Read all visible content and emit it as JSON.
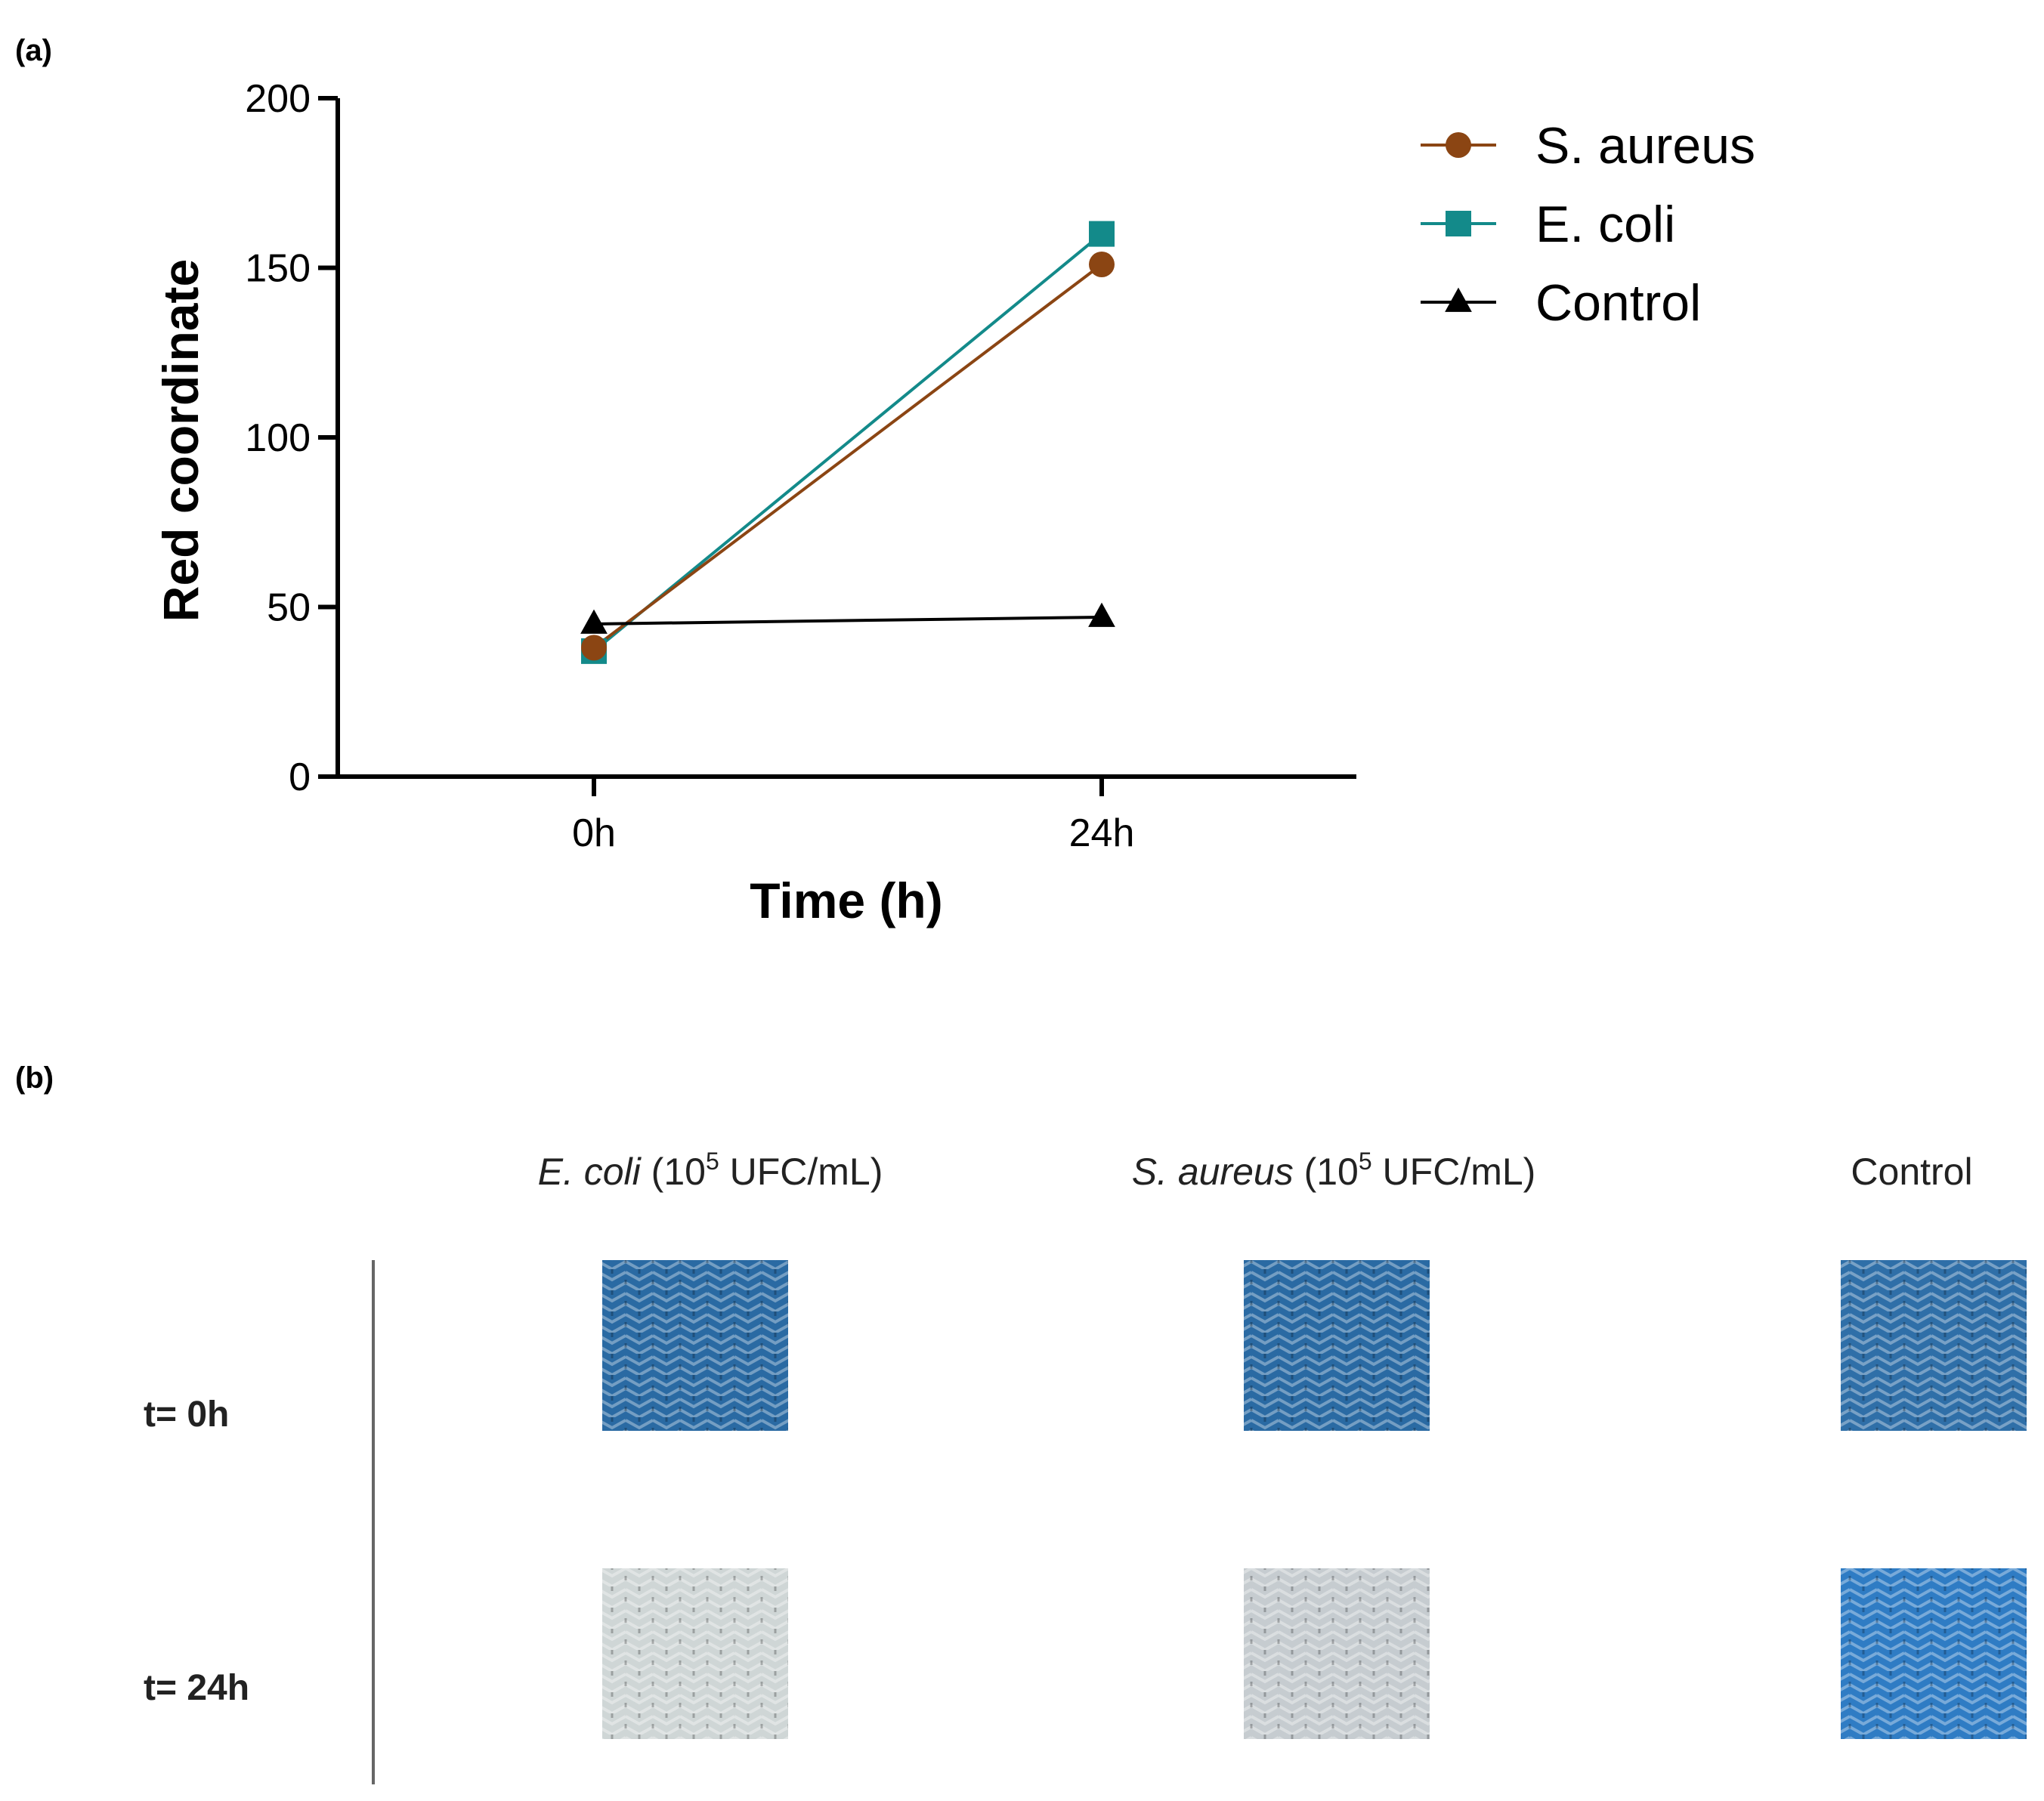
{
  "panel_a": {
    "label": "(a)"
  },
  "panel_b": {
    "label": "(b)",
    "columns": [
      {
        "species": "E. coli",
        "conc": "(10",
        "sup": "5",
        "unit": " UFC/mL)"
      },
      {
        "species": "S. aureus",
        "conc": "(10",
        "sup": "5",
        "unit": " UFC/mL)"
      },
      {
        "species": "",
        "conc": "Control",
        "sup": "",
        "unit": ""
      }
    ],
    "rows": [
      "t= 0h",
      "t= 24h"
    ],
    "swatch_colors": [
      [
        "#2a6aa3",
        "#2a6aa3",
        "#2f6fa8"
      ],
      [
        "#cfd6d6",
        "#c6ccd0",
        "#2f7cc4"
      ]
    ]
  },
  "chart_data": {
    "type": "line",
    "title": "",
    "xlabel": "Time (h)",
    "ylabel": "Red coordinate",
    "categories": [
      "0h",
      "24h"
    ],
    "ylim": [
      0,
      200
    ],
    "yticks": [
      0,
      50,
      100,
      150,
      200
    ],
    "grid": false,
    "legend_position": "top-right",
    "series": [
      {
        "name": "S. aureus",
        "values": [
          38,
          151
        ],
        "color": "#8b4513",
        "marker": "circle"
      },
      {
        "name": "E. coli",
        "values": [
          37,
          160
        ],
        "color": "#138a8a",
        "marker": "square"
      },
      {
        "name": "Control",
        "values": [
          45,
          47
        ],
        "color": "#000000",
        "marker": "triangle"
      }
    ]
  }
}
